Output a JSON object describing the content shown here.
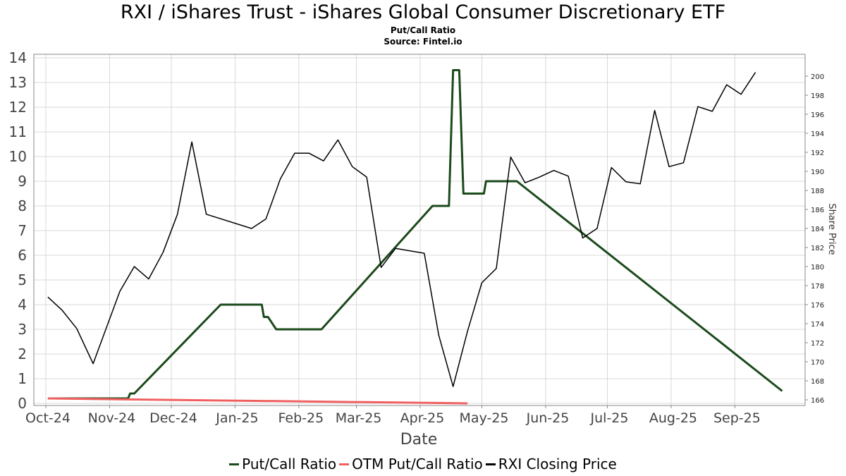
{
  "chart_data": {
    "type": "line",
    "title": "RXI / iShares Trust - iShares Global Consumer Discretionary ETF",
    "subtitle": "Put/Call Ratio",
    "source": "Source: Fintel.io",
    "xlabel": "Date",
    "ylabel_right": "Share Price",
    "x_ticks": [
      "Oct-24",
      "Nov-24",
      "Dec-24",
      "Jan-25",
      "Feb-25",
      "Mar-25",
      "Apr-25",
      "May-25",
      "Jun-25",
      "Jul-25",
      "Aug-25",
      "Sep-25"
    ],
    "y_left": {
      "ticks": [
        "0",
        "1",
        "2",
        "3",
        "4",
        "5",
        "6",
        "7",
        "8",
        "9",
        "10",
        "11",
        "12",
        "13",
        "14"
      ]
    },
    "y_right": {
      "ticks": [
        "166",
        "168",
        "170",
        "172",
        "174",
        "176",
        "178",
        "180",
        "182",
        "184",
        "186",
        "188",
        "190",
        "192",
        "194",
        "196",
        "198",
        "200"
      ]
    },
    "grid": true,
    "legend_position": "bottom",
    "series": [
      {
        "name": "Put/Call Ratio",
        "axis": "left",
        "color": "#1b4a1b",
        "points": [
          [
            "2024-10-02",
            0.2
          ],
          [
            "2024-11-10",
            0.2
          ],
          [
            "2024-11-11",
            0.4
          ],
          [
            "2024-11-13",
            0.4
          ],
          [
            "2024-12-25",
            4.0
          ],
          [
            "2025-01-14",
            4.0
          ],
          [
            "2025-01-15",
            3.5
          ],
          [
            "2025-01-17",
            3.5
          ],
          [
            "2025-01-21",
            3.0
          ],
          [
            "2025-02-12",
            3.0
          ],
          [
            "2025-04-07",
            8.0
          ],
          [
            "2025-04-15",
            8.0
          ],
          [
            "2025-04-17",
            13.5
          ],
          [
            "2025-04-20",
            13.5
          ],
          [
            "2025-04-22",
            8.5
          ],
          [
            "2025-05-02",
            8.5
          ],
          [
            "2025-05-03",
            9.0
          ],
          [
            "2025-05-18",
            9.0
          ],
          [
            "2025-09-24",
            0.5
          ]
        ]
      },
      {
        "name": "OTM Put/Call Ratio",
        "axis": "left",
        "color": "#f06060",
        "points": [
          [
            "2024-10-02",
            0.2
          ],
          [
            "2025-04-24",
            0.0
          ]
        ]
      },
      {
        "name": "RXI Closing Price",
        "axis": "right",
        "color": "#000000",
        "points": [
          [
            "2024-10-02",
            176.8
          ],
          [
            "2024-10-09",
            175.4
          ],
          [
            "2024-10-16",
            173.5
          ],
          [
            "2024-10-24",
            169.8
          ],
          [
            "2024-11-06",
            177.4
          ],
          [
            "2024-11-13",
            180.0
          ],
          [
            "2024-11-20",
            178.7
          ],
          [
            "2024-11-27",
            181.5
          ],
          [
            "2024-12-04",
            185.5
          ],
          [
            "2024-12-11",
            193.1
          ],
          [
            "2024-12-18",
            185.5
          ],
          [
            "2025-01-09",
            184.0
          ],
          [
            "2025-01-16",
            185.0
          ],
          [
            "2025-01-23",
            189.2
          ],
          [
            "2025-01-30",
            191.9
          ],
          [
            "2025-02-06",
            191.9
          ],
          [
            "2025-02-13",
            191.1
          ],
          [
            "2025-02-20",
            193.3
          ],
          [
            "2025-02-27",
            190.5
          ],
          [
            "2025-03-06",
            189.4
          ],
          [
            "2025-03-13",
            179.9
          ],
          [
            "2025-03-20",
            181.9
          ],
          [
            "2025-04-03",
            181.4
          ],
          [
            "2025-04-10",
            172.8
          ],
          [
            "2025-04-17",
            167.4
          ],
          [
            "2025-04-24",
            173.2
          ],
          [
            "2025-05-01",
            178.3
          ],
          [
            "2025-05-08",
            179.8
          ],
          [
            "2025-05-15",
            191.5
          ],
          [
            "2025-05-22",
            188.8
          ],
          [
            "2025-05-29",
            189.4
          ],
          [
            "2025-06-05",
            190.1
          ],
          [
            "2025-06-12",
            189.5
          ],
          [
            "2025-06-19",
            183.0
          ],
          [
            "2025-06-26",
            184.0
          ],
          [
            "2025-07-03",
            190.4
          ],
          [
            "2025-07-10",
            188.9
          ],
          [
            "2025-07-17",
            188.7
          ],
          [
            "2025-07-24",
            196.4
          ],
          [
            "2025-07-31",
            190.5
          ],
          [
            "2025-08-07",
            190.9
          ],
          [
            "2025-08-14",
            196.8
          ],
          [
            "2025-08-21",
            196.3
          ],
          [
            "2025-08-28",
            199.1
          ],
          [
            "2025-09-04",
            198.1
          ],
          [
            "2025-09-11",
            200.4
          ]
        ]
      }
    ]
  }
}
